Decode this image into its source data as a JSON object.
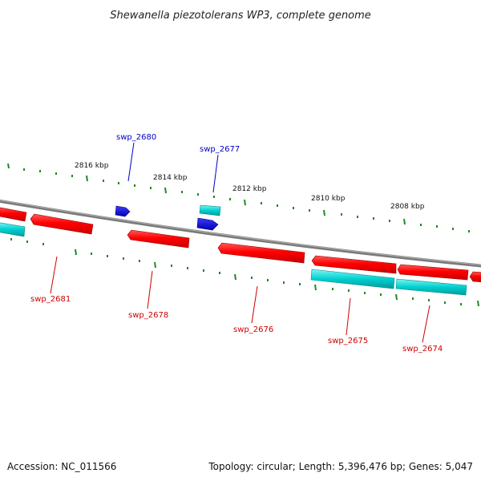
{
  "title": "Shewanella piezotolerans WP3, complete genome",
  "footer": {
    "accession": "Accession: NC_011566",
    "summary": "Topology: circular; Length: 5,396,476 bp; Genes: 5,047"
  },
  "scale_labels": [
    "2816 kbp",
    "2814 kbp",
    "2812 kbp",
    "2810 kbp",
    "2808 kbp"
  ],
  "gene_labels": {
    "swp_2680": "swp_2680",
    "swp_2677": "swp_2677",
    "swp_2681": "swp_2681",
    "swp_2678": "swp_2678",
    "swp_2676": "swp_2676",
    "swp_2675": "swp_2675",
    "swp_2674": "swp_2674"
  },
  "colors": {
    "forward_gene": "#ff0000",
    "reverse_gene": "#ff0000",
    "forward_rna": "#0000ee",
    "cyan_gene": "#00d8d8",
    "label_forward": "#0000cc",
    "label_reverse": "#cc0000",
    "backbone": "#808080",
    "ticks": "#228822"
  }
}
